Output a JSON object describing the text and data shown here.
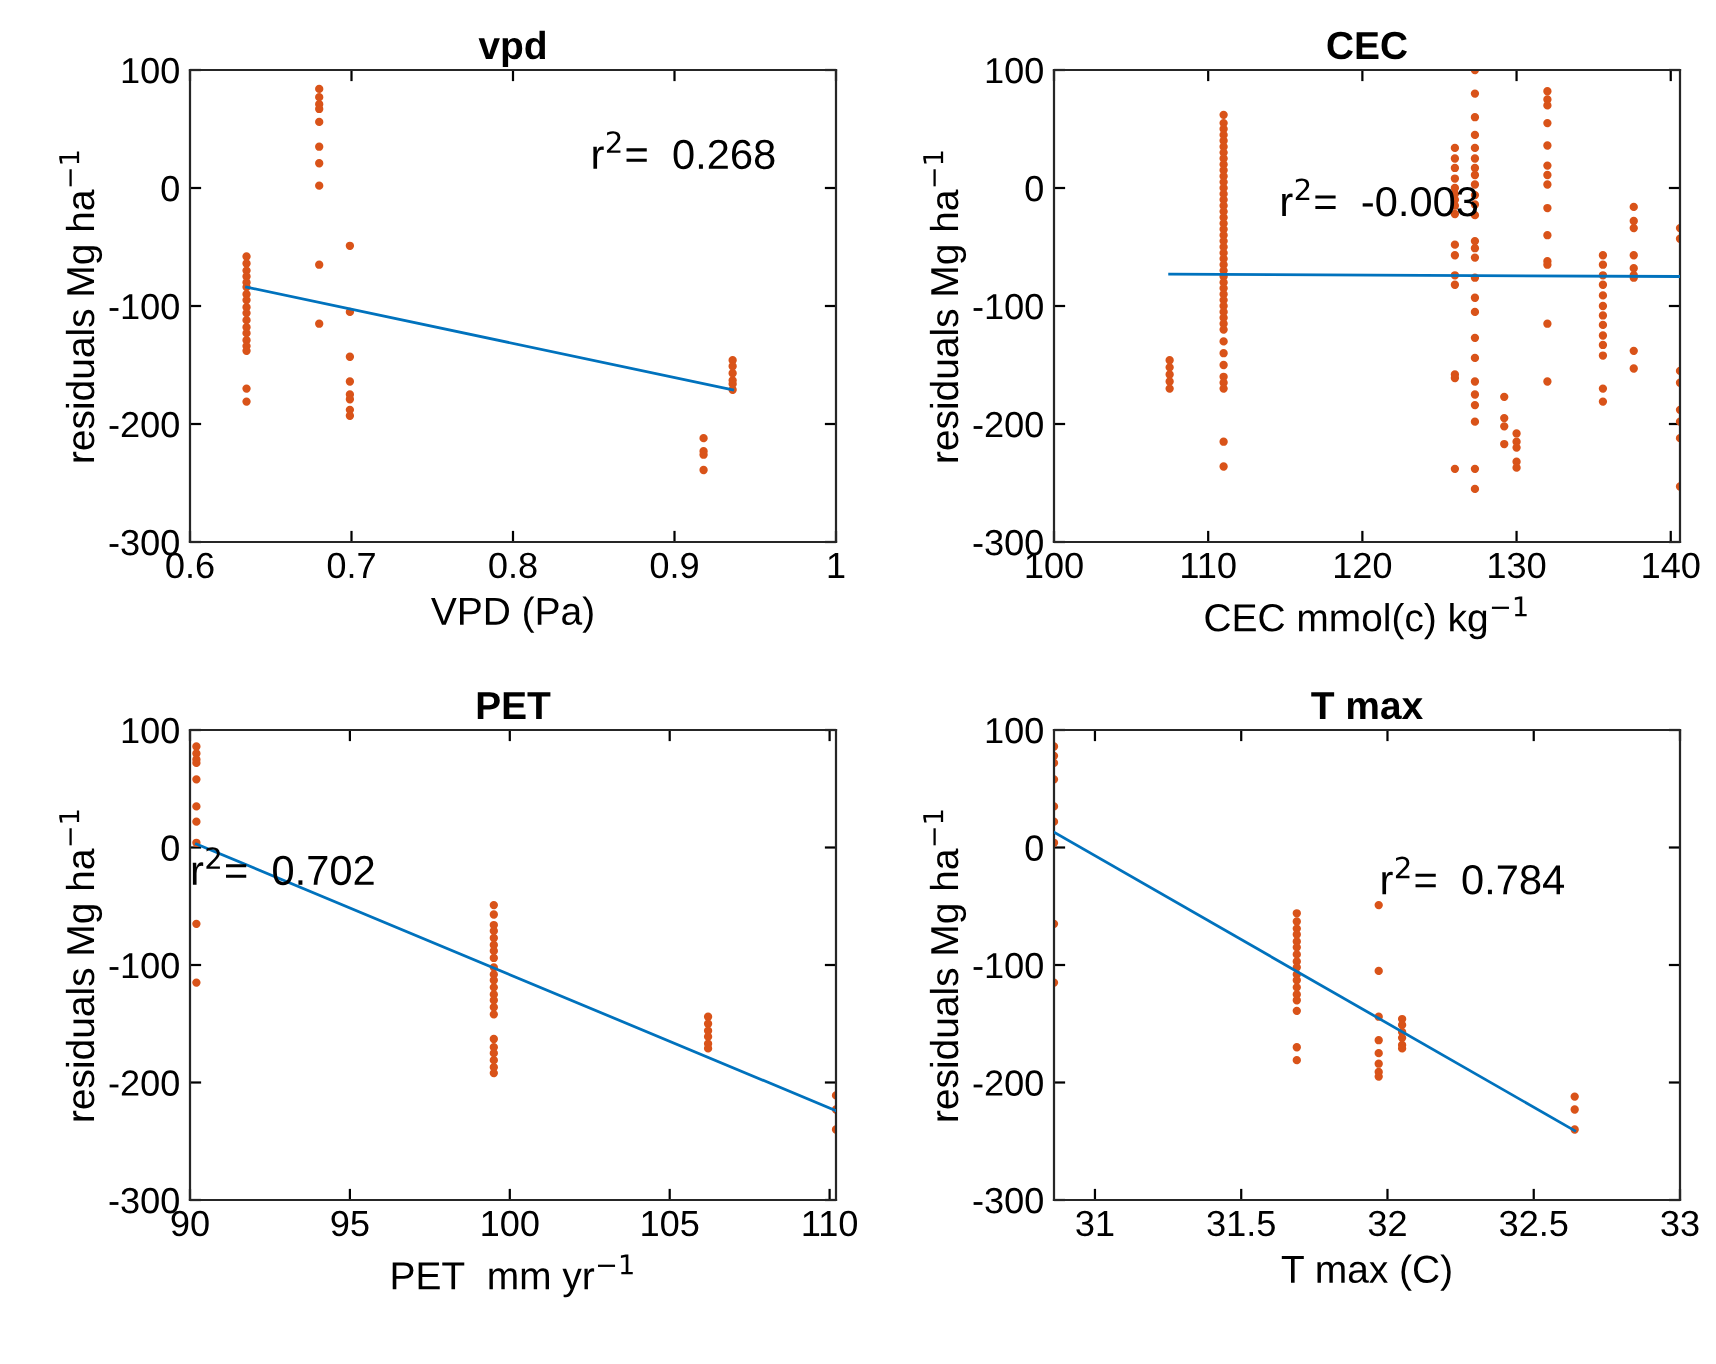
{
  "chart_data": [
    {
      "type": "scatter",
      "title": "vpd",
      "xlabel": "VPD (Pa)",
      "ylabel": "residuals Mg ha$^{−1}$",
      "annotations": [
        "r$^{2}$=  0.268"
      ],
      "xlim": [
        0.6,
        1
      ],
      "xticks": [
        0.6,
        0.7,
        0.8,
        0.9,
        1
      ],
      "ylim": [
        -300,
        100
      ],
      "yticks": [
        -300,
        -200,
        -100,
        0,
        100
      ],
      "grid": false,
      "legend": false,
      "series": [
        {
          "marker": "circle",
          "color": "#d95319",
          "x": [
            0.635,
            0.635,
            0.635,
            0.635,
            0.635,
            0.635,
            0.635,
            0.635,
            0.635,
            0.635,
            0.635,
            0.635,
            0.635,
            0.635,
            0.635,
            0.635,
            0.635,
            0.635,
            0.68,
            0.68,
            0.68,
            0.68,
            0.68,
            0.68,
            0.68,
            0.68,
            0.68,
            0.68,
            0.699,
            0.699,
            0.699,
            0.699,
            0.699,
            0.699,
            0.699,
            0.699,
            0.918,
            0.918,
            0.918,
            0.918,
            0.936,
            0.936,
            0.936,
            0.936,
            0.936,
            0.936
          ],
          "values": [
            -58,
            -64,
            -70,
            -75,
            -80,
            -84,
            -90,
            -95,
            -101,
            -106,
            -112,
            -118,
            -123,
            -129,
            -134,
            -138,
            -170,
            -181,
            84,
            77,
            71,
            67,
            56,
            35,
            21,
            2,
            -65,
            -115,
            -49,
            -105,
            -143,
            -164,
            -175,
            -179,
            -188,
            -193,
            -212,
            -223,
            -226,
            -239,
            -146,
            -151,
            -157,
            -163,
            -166,
            -171
          ]
        },
        {
          "type": "line",
          "color": "#0072bd",
          "x": [
            0.635,
            0.936
          ],
          "values": [
            -84,
            -171
          ]
        }
      ]
    },
    {
      "type": "scatter",
      "title": "CEC",
      "xlabel": "CEC mmol(c) kg$^{−1}$",
      "ylabel": "residuals Mg ha$^{−1}$",
      "annotations": [
        "r$^{2}$=  -0.003"
      ],
      "xlim": [
        100,
        140.6
      ],
      "xticks": [
        100,
        110,
        120,
        130,
        140
      ],
      "ylim": [
        -300,
        100
      ],
      "yticks": [
        -300,
        -200,
        -100,
        0,
        100
      ],
      "grid": false,
      "legend": false,
      "series": [
        {
          "marker": "circle",
          "color": "#d95319",
          "x": [
            107.5,
            107.5,
            107.5,
            107.5,
            107.5,
            111,
            111,
            111,
            111,
            111,
            111,
            111,
            111,
            111,
            111,
            111,
            111,
            111,
            111,
            111,
            111,
            111,
            111,
            111,
            111,
            111,
            111,
            111,
            111,
            111,
            111,
            111,
            111,
            111,
            111,
            111,
            111,
            111,
            111,
            111,
            111,
            111,
            111,
            111,
            111,
            111,
            111,
            111,
            111,
            111,
            126,
            126,
            126,
            126,
            126,
            126,
            126,
            126,
            126,
            126,
            126,
            126,
            126,
            126,
            126,
            126,
            127.3,
            127.3,
            127.3,
            127.3,
            127.3,
            127.3,
            127.3,
            127.3,
            127.3,
            127.3,
            127.3,
            127.3,
            127.3,
            127.3,
            127.3,
            127.3,
            127.3,
            127.3,
            127.3,
            127.3,
            127.3,
            127.3,
            127.3,
            127.3,
            127.3,
            127.3,
            129.2,
            129.2,
            129.2,
            129.2,
            130,
            130,
            130,
            130,
            130,
            132,
            132,
            132,
            132,
            132,
            132,
            132,
            132,
            132,
            132,
            132,
            132,
            132,
            132,
            135.6,
            135.6,
            135.6,
            135.6,
            135.6,
            135.6,
            135.6,
            135.6,
            135.6,
            135.6,
            135.6,
            135.6,
            135.6,
            137.6,
            137.6,
            137.6,
            137.6,
            137.6,
            137.6,
            137.6,
            137.6,
            137.6,
            140.6,
            140.6,
            140.6,
            140.6,
            140.6,
            140.6,
            140.6,
            140.6
          ],
          "values": [
            -146,
            -152,
            -158,
            -164,
            -170,
            62,
            55,
            50,
            45,
            40,
            35,
            30,
            25,
            20,
            15,
            10,
            5,
            0,
            -5,
            -10,
            -15,
            -20,
            -25,
            -30,
            -35,
            -40,
            -45,
            -50,
            -55,
            -60,
            -65,
            -70,
            -75,
            -80,
            -85,
            -90,
            -95,
            -100,
            -105,
            -110,
            -115,
            -120,
            -130,
            -140,
            -150,
            -160,
            -165,
            -170,
            -215,
            -236,
            34,
            25,
            17,
            8,
            0,
            -5,
            -10,
            -15,
            -22,
            -48,
            -57,
            -74,
            -82,
            -158,
            -161,
            -238,
            100,
            80,
            60,
            45,
            34,
            25,
            17,
            11,
            3,
            -6,
            -14,
            -23,
            -45,
            -51,
            -59,
            -76,
            -93,
            -105,
            -127,
            -144,
            -164,
            -175,
            -184,
            -198,
            -238,
            -255,
            -177,
            -195,
            -202,
            -217,
            -208,
            -215,
            -220,
            -232,
            -237,
            82,
            75,
            70,
            55,
            36,
            19,
            11,
            3,
            -17,
            -40,
            -62,
            -65,
            -115,
            -164,
            -57,
            -65,
            -74,
            -82,
            -91,
            -100,
            -108,
            -116,
            -125,
            -133,
            -142,
            -170,
            -181,
            -16,
            -28,
            -34,
            -57,
            -68,
            -74,
            -76,
            -138,
            -153,
            -34,
            -43,
            -155,
            -165,
            -188,
            -198,
            -212,
            -253
          ]
        },
        {
          "type": "line",
          "color": "#0072bd",
          "x": [
            107.5,
            140.6
          ],
          "values": [
            -73,
            -75
          ]
        }
      ]
    },
    {
      "type": "scatter",
      "title": "PET",
      "xlabel": "PET  mm yr$^{−1}$",
      "ylabel": "residuals Mg ha$^{−1}$",
      "annotations": [
        "r$^{2}$=  0.702"
      ],
      "xlim": [
        90,
        110.2
      ],
      "xticks": [
        90,
        95,
        100,
        105,
        110
      ],
      "ylim": [
        -300,
        100
      ],
      "yticks": [
        -300,
        -200,
        -100,
        0,
        100
      ],
      "grid": false,
      "legend": false,
      "series": [
        {
          "marker": "circle",
          "color": "#d95319",
          "x": [
            90.2,
            90.2,
            90.2,
            90.2,
            90.2,
            90.2,
            90.2,
            90.2,
            90.2,
            90.2,
            99.5,
            99.5,
            99.5,
            99.5,
            99.5,
            99.5,
            99.5,
            99.5,
            99.5,
            99.5,
            99.5,
            99.5,
            99.5,
            99.5,
            99.5,
            99.5,
            99.5,
            99.5,
            99.5,
            99.5,
            99.5,
            99.5,
            106.2,
            106.2,
            106.2,
            106.2,
            106.2,
            106.2,
            110.2,
            110.2,
            110.2
          ],
          "values": [
            86,
            80,
            75,
            72,
            58,
            35,
            22,
            4,
            -65,
            -115,
            -49,
            -57,
            -66,
            -71,
            -77,
            -83,
            -88,
            -94,
            -102,
            -108,
            -113,
            -119,
            -125,
            -130,
            -136,
            -142,
            -163,
            -170,
            -175,
            -181,
            -187,
            -192,
            -144,
            -150,
            -156,
            -161,
            -167,
            -171,
            -211,
            -223,
            -240
          ]
        },
        {
          "type": "line",
          "color": "#0072bd",
          "x": [
            90.2,
            110.2
          ],
          "values": [
            3,
            -224
          ]
        }
      ]
    },
    {
      "type": "scatter",
      "title": "T max",
      "xlabel": "T max (C)",
      "ylabel": "residuals Mg ha$^{−1}$",
      "annotations": [
        "r$^{2}$=  0.784"
      ],
      "xlim": [
        30.86,
        33
      ],
      "xticks": [
        31,
        31.5,
        32,
        32.5,
        33
      ],
      "ylim": [
        -300,
        100
      ],
      "yticks": [
        -300,
        -200,
        -100,
        0,
        100
      ],
      "grid": false,
      "legend": false,
      "series": [
        {
          "marker": "circle",
          "color": "#d95319",
          "x": [
            30.86,
            30.86,
            30.86,
            30.86,
            30.86,
            30.86,
            30.86,
            30.86,
            30.86,
            31.69,
            31.69,
            31.69,
            31.69,
            31.69,
            31.69,
            31.69,
            31.69,
            31.69,
            31.69,
            31.69,
            31.69,
            31.69,
            31.69,
            31.69,
            31.69,
            31.69,
            31.97,
            31.97,
            31.97,
            31.97,
            31.97,
            31.97,
            31.97,
            31.97,
            32.05,
            32.05,
            32.05,
            32.05,
            32.05,
            32.05,
            32.64,
            32.64,
            32.64
          ],
          "values": [
            86,
            78,
            72,
            58,
            35,
            22,
            4,
            -65,
            -115,
            -56,
            -63,
            -69,
            -74,
            -80,
            -85,
            -91,
            -97,
            -102,
            -108,
            -113,
            -119,
            -125,
            -130,
            -139,
            -170,
            -181,
            -49,
            -105,
            -144,
            -164,
            -175,
            -184,
            -191,
            -195,
            -146,
            -151,
            -157,
            -162,
            -168,
            -171,
            -212,
            -223,
            -240
          ]
        },
        {
          "type": "line",
          "color": "#0072bd",
          "x": [
            30.86,
            32.64
          ],
          "values": [
            13,
            -241
          ]
        }
      ]
    }
  ]
}
